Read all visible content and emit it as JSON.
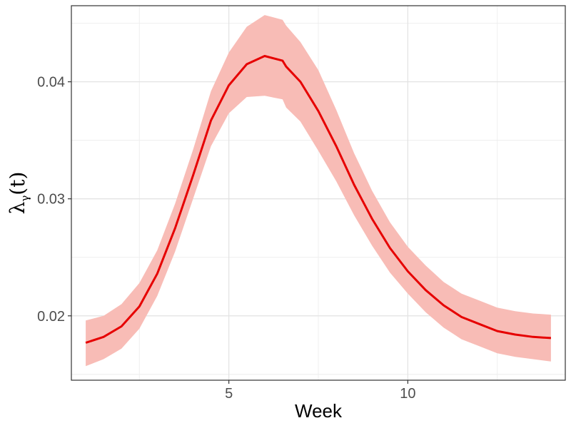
{
  "chart_data": {
    "type": "line",
    "xlabel": "Week",
    "ylabel": "λγ(t)",
    "ylabel_main": "λ",
    "ylabel_sub": "γ",
    "ylabel_arg": "(t)",
    "xlim": [
      0.6,
      14.4
    ],
    "ylim": [
      0.0145,
      0.0465
    ],
    "x_ticks": [
      5,
      10
    ],
    "y_ticks": [
      0.02,
      0.03,
      0.04
    ],
    "x_tick_labels": [
      "5",
      "10"
    ],
    "y_tick_labels": [
      "0.02",
      "0.03",
      "0.04"
    ],
    "grid": true,
    "colors": {
      "line": "#e60000",
      "band": "#f8bcb6",
      "panel_border": "#333333",
      "grid": "#ebebeb"
    },
    "series": [
      {
        "x": [
          1,
          1.5,
          2,
          2.5,
          3,
          3.5,
          4,
          4.5,
          5,
          5.5,
          6,
          6.5,
          6.6,
          7,
          7.5,
          8,
          8.5,
          9,
          9.5,
          10,
          10.5,
          11,
          11.5,
          12,
          12.5,
          13,
          13.5,
          14
        ],
        "y": [
          0.0177,
          0.0182,
          0.0191,
          0.0208,
          0.0236,
          0.0275,
          0.032,
          0.0367,
          0.0397,
          0.0415,
          0.0422,
          0.0418,
          0.0413,
          0.04,
          0.0375,
          0.0345,
          0.0312,
          0.0283,
          0.0258,
          0.0238,
          0.0222,
          0.0209,
          0.0199,
          0.0193,
          0.0187,
          0.0184,
          0.0182,
          0.0181
        ],
        "lower": [
          0.0157,
          0.0163,
          0.0172,
          0.0189,
          0.0217,
          0.0255,
          0.03,
          0.0345,
          0.0373,
          0.0387,
          0.0388,
          0.0385,
          0.0378,
          0.0366,
          0.0341,
          0.0315,
          0.0286,
          0.026,
          0.0237,
          0.0219,
          0.0203,
          0.019,
          0.018,
          0.0174,
          0.0168,
          0.0165,
          0.0163,
          0.0161
        ],
        "upper": [
          0.0196,
          0.02,
          0.021,
          0.0228,
          0.0256,
          0.0296,
          0.0342,
          0.0392,
          0.0425,
          0.0447,
          0.0457,
          0.0453,
          0.0448,
          0.0434,
          0.041,
          0.0376,
          0.0339,
          0.0307,
          0.028,
          0.0259,
          0.0243,
          0.0229,
          0.0219,
          0.0213,
          0.0207,
          0.0204,
          0.0202,
          0.0201
        ]
      }
    ]
  }
}
